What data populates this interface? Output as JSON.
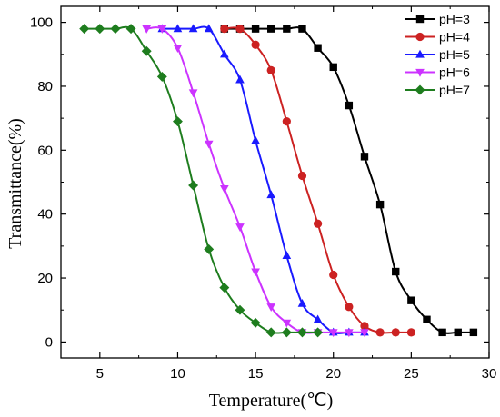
{
  "chart_data": {
    "type": "line",
    "xlabel": "Temperature(℃)",
    "ylabel": "Transmittance(%)",
    "xlim": [
      2.5,
      30
    ],
    "ylim": [
      -5,
      105
    ],
    "xticks": [
      5,
      10,
      15,
      20,
      25,
      30
    ],
    "yticks": [
      0,
      20,
      40,
      60,
      80,
      100
    ],
    "grid": false,
    "legend_position": "top-right",
    "series": [
      {
        "name": "pH=3",
        "color": "#000000",
        "marker": "square",
        "x": [
          13,
          14,
          15,
          16,
          17,
          18,
          19,
          20,
          21,
          22,
          23,
          24,
          25,
          26,
          27,
          28,
          29
        ],
        "y": [
          98,
          98,
          98,
          98,
          98,
          98,
          92,
          86,
          74,
          58,
          43,
          22,
          13,
          7,
          3,
          3,
          3
        ]
      },
      {
        "name": "pH=4",
        "color": "#cc2222",
        "marker": "circle",
        "x": [
          13,
          14,
          15,
          16,
          17,
          18,
          19,
          20,
          21,
          22,
          23,
          24,
          25
        ],
        "y": [
          98,
          98,
          93,
          85,
          69,
          52,
          37,
          21,
          11,
          5,
          3,
          3,
          3
        ]
      },
      {
        "name": "pH=5",
        "color": "#1a1aff",
        "marker": "triangle-up",
        "x": [
          9,
          10,
          11,
          12,
          13,
          14,
          15,
          16,
          17,
          18,
          19,
          20,
          21,
          22
        ],
        "y": [
          98,
          98,
          98,
          98,
          90,
          82,
          63,
          46,
          27,
          12,
          7,
          3,
          3,
          3
        ]
      },
      {
        "name": "pH=6",
        "color": "#cc33ff",
        "marker": "triangle-down",
        "x": [
          8,
          9,
          10,
          11,
          12,
          13,
          14,
          15,
          16,
          17,
          18,
          19,
          20,
          21,
          22
        ],
        "y": [
          98,
          98,
          92,
          78,
          62,
          48,
          36,
          22,
          11,
          6,
          3,
          3,
          3,
          3,
          3
        ]
      },
      {
        "name": "pH=7",
        "color": "#1e7d1e",
        "marker": "diamond",
        "x": [
          4,
          5,
          6,
          7,
          8,
          9,
          10,
          11,
          12,
          13,
          14,
          15,
          16,
          17,
          18,
          19
        ],
        "y": [
          98,
          98,
          98,
          98,
          91,
          83,
          69,
          49,
          29,
          17,
          10,
          6,
          3,
          3,
          3,
          3
        ]
      }
    ]
  }
}
